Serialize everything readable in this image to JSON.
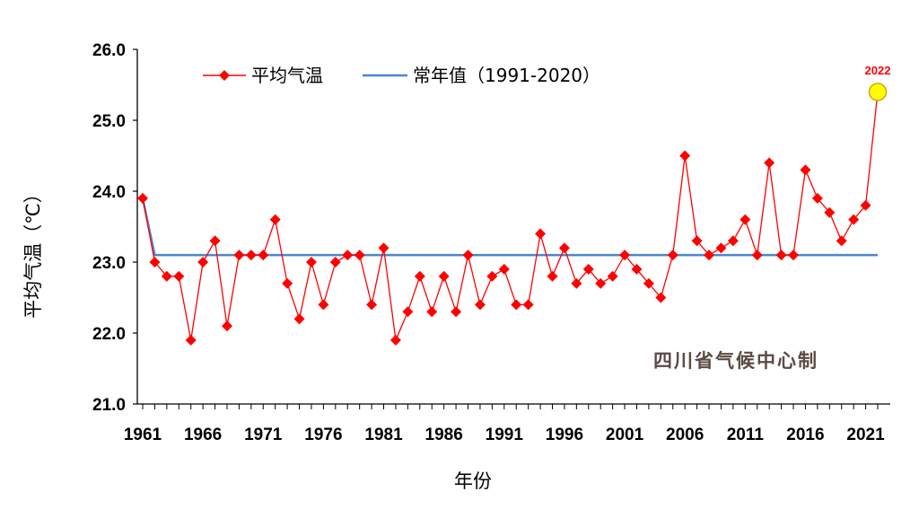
{
  "chart_data": {
    "type": "line",
    "xlabel": "年份",
    "ylabel": "平均气温（℃）",
    "ylim": [
      21.0,
      26.0
    ],
    "y_ticks": [
      "21.0",
      "22.0",
      "23.0",
      "24.0",
      "25.0",
      "26.0"
    ],
    "x_tick_labels": [
      "1961",
      "1966",
      "1971",
      "1976",
      "1981",
      "1986",
      "1991",
      "1996",
      "2001",
      "2006",
      "2011",
      "2016",
      "2021"
    ],
    "x_range": [
      1961,
      2022
    ],
    "legend": {
      "position": "top",
      "series_label": "平均气温",
      "normal_label": "常年值（1991-2020）"
    },
    "series": [
      {
        "name": "平均气温",
        "color": "#ff0000",
        "marker": "diamond",
        "x": [
          1961,
          1962,
          1963,
          1964,
          1965,
          1966,
          1967,
          1968,
          1969,
          1970,
          1971,
          1972,
          1973,
          1974,
          1975,
          1976,
          1977,
          1978,
          1979,
          1980,
          1981,
          1982,
          1983,
          1984,
          1985,
          1986,
          1987,
          1988,
          1989,
          1990,
          1991,
          1992,
          1993,
          1994,
          1995,
          1996,
          1997,
          1998,
          1999,
          2000,
          2001,
          2002,
          2003,
          2004,
          2005,
          2006,
          2007,
          2008,
          2009,
          2010,
          2011,
          2012,
          2013,
          2014,
          2015,
          2016,
          2017,
          2018,
          2019,
          2020,
          2021,
          2022
        ],
        "values": [
          23.9,
          23.0,
          22.8,
          22.8,
          21.9,
          23.0,
          23.3,
          22.1,
          23.1,
          23.1,
          23.1,
          23.6,
          22.7,
          22.2,
          23.0,
          22.4,
          23.0,
          23.1,
          23.1,
          22.4,
          23.2,
          21.9,
          22.3,
          22.8,
          22.3,
          22.8,
          22.3,
          23.1,
          22.4,
          22.8,
          22.9,
          22.4,
          22.4,
          23.4,
          22.8,
          23.2,
          22.7,
          22.9,
          22.7,
          22.8,
          23.1,
          22.9,
          22.7,
          22.5,
          23.1,
          24.5,
          23.3,
          23.1,
          23.2,
          23.3,
          23.6,
          23.1,
          24.4,
          23.1,
          23.1,
          24.3,
          23.9,
          23.7,
          23.3,
          23.6,
          23.8,
          25.4
        ]
      },
      {
        "name": "常年值（1991-2020）",
        "color": "#4a86d0",
        "x": [
          1961,
          1962,
          2022
        ],
        "values": [
          23.9,
          23.1,
          23.1
        ]
      }
    ],
    "highlight": {
      "x": 2022,
      "value": 25.4,
      "label": "2022",
      "fill": "#ffff00",
      "stroke": "#e0a000"
    },
    "watermark": "四川省气候中心制"
  }
}
